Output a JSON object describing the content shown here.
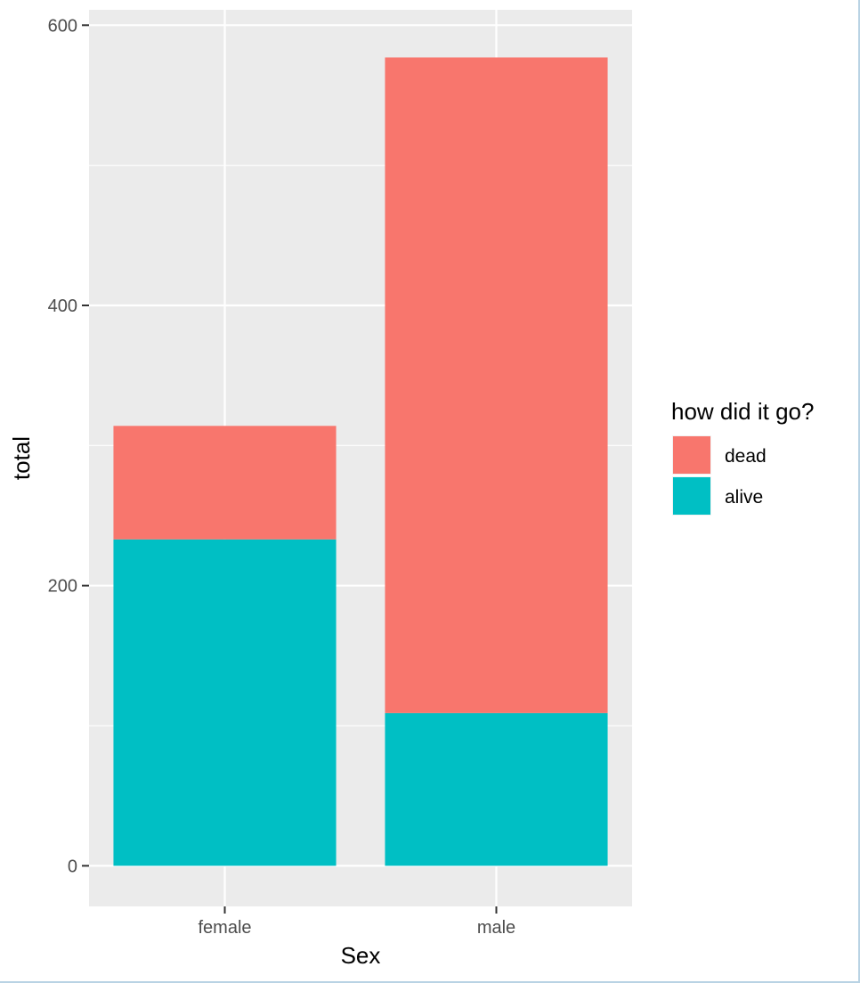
{
  "chart_data": {
    "type": "bar",
    "stacked": true,
    "categories": [
      "female",
      "male"
    ],
    "series": [
      {
        "name": "dead",
        "values": [
          81,
          468
        ],
        "color": "#F8766D"
      },
      {
        "name": "alive",
        "values": [
          233,
          109
        ],
        "color": "#00BFC4"
      }
    ],
    "xlabel": "Sex",
    "ylabel": "total",
    "ylim": [
      -29,
      611
    ],
    "yticks": [
      0,
      200,
      400,
      600
    ],
    "grid": true,
    "legend": {
      "title": "how did it go?",
      "position": "right",
      "items": [
        "dead",
        "alive"
      ]
    },
    "panel_background": "#EBEBEB",
    "grid_color": "#FFFFFF"
  }
}
